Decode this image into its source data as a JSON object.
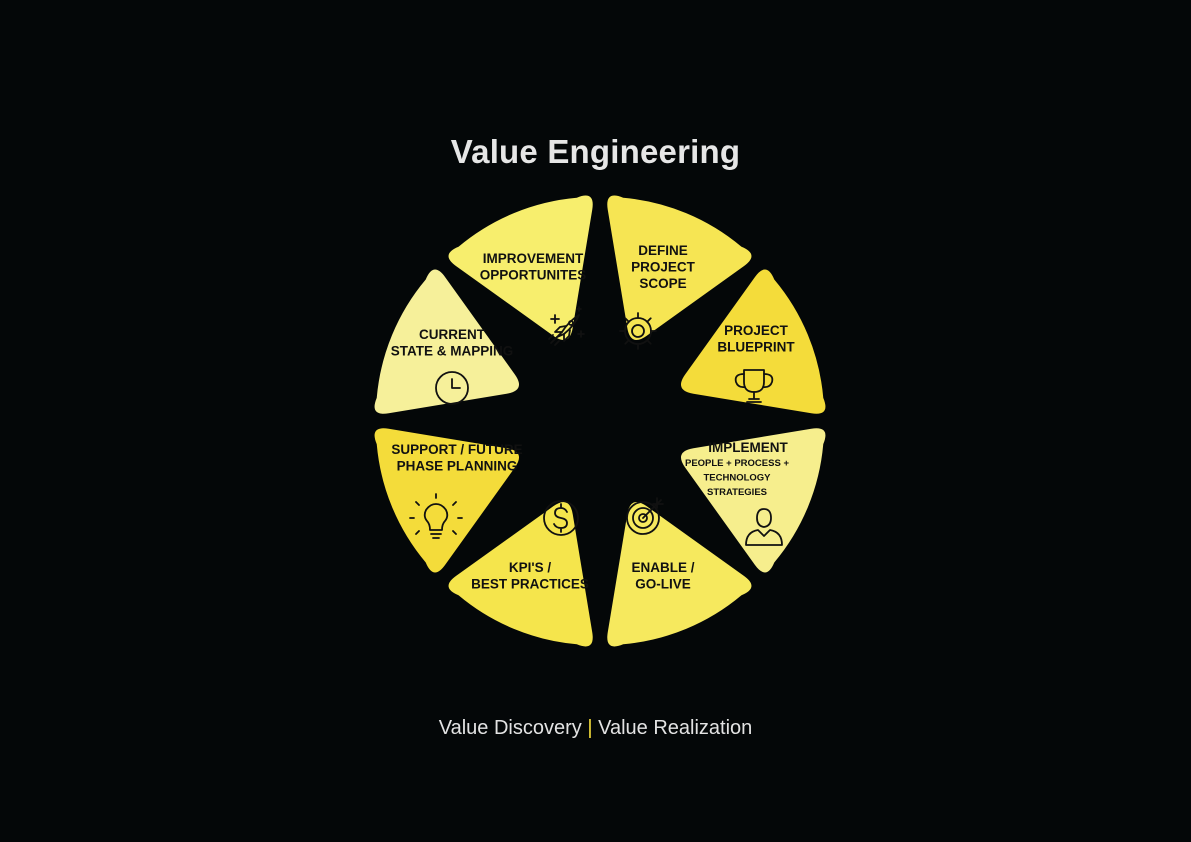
{
  "title": "Value Engineering",
  "segments": [
    {
      "id": "define",
      "lines": [
        "DEFINE",
        "PROJECT",
        "SCOPE"
      ],
      "icon": "gear-icon",
      "color": "#f6e553"
    },
    {
      "id": "blueprint",
      "lines": [
        "PROJECT",
        "BLUEPRINT"
      ],
      "icon": "trophy-icon",
      "color": "#f4dc3a"
    },
    {
      "id": "implement",
      "lines": [
        "IMPLEMENT"
      ],
      "sub_lines": [
        "PEOPLE + PROCESS +",
        "TECHNOLOGY",
        "STRATEGIES"
      ],
      "icon": "person-icon",
      "color": "#f6ee8d"
    },
    {
      "id": "enable",
      "lines": [
        "ENABLE /",
        "GO-LIVE"
      ],
      "icon": "target-icon",
      "color": "#f6e95e"
    },
    {
      "id": "kpis",
      "lines": [
        "KPI'S /",
        "BEST PRACTICES"
      ],
      "icon": "dollar-icon",
      "color": "#f5e54c"
    },
    {
      "id": "support",
      "lines": [
        "SUPPORT / FUTURE",
        "PHASE PLANNING"
      ],
      "icon": "lightbulb-icon",
      "color": "#f4dc3a"
    },
    {
      "id": "current",
      "lines": [
        "CURRENT",
        "STATE & MAPPING"
      ],
      "icon": "clock-icon",
      "color": "#f6f09a"
    },
    {
      "id": "improvement",
      "lines": [
        "IMPROVEMENT",
        "OPPORTUNITES"
      ],
      "icon": "rocket-icon",
      "color": "#f7ee6d"
    }
  ],
  "footer": {
    "left": "Value Discovery",
    "separator": "|",
    "right": "Value Realization"
  }
}
